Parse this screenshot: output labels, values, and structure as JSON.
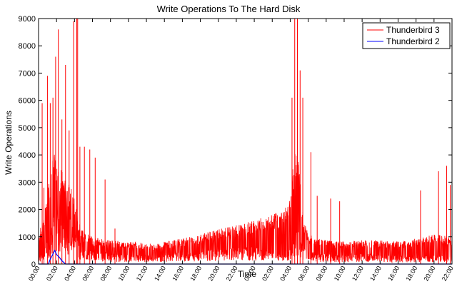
{
  "chart_data": {
    "type": "line",
    "title": "Write Operations To The Hard Disk",
    "xlabel": "Time",
    "ylabel": "Write Operations",
    "ylim": [
      0,
      9000
    ],
    "yticks": [
      0,
      1000,
      2000,
      3000,
      4000,
      5000,
      6000,
      7000,
      8000,
      9000
    ],
    "xlim_hours": [
      0,
      46
    ],
    "xtick_labels": [
      "00:00",
      "02:00",
      "04:00",
      "06:00",
      "08:00",
      "10:00",
      "12:00",
      "14:00",
      "16:00",
      "18:00",
      "20:00",
      "22:00",
      "00:00",
      "02:00",
      "04:00",
      "06:00",
      "08:00",
      "10:00",
      "12:00",
      "14:00",
      "16:00",
      "18:00",
      "20:00",
      "22:00"
    ],
    "grid": false,
    "legend_position": "top-right",
    "series": [
      {
        "name": "Thunderbird 3",
        "color": "#ff0000",
        "envelope": {
          "hours": [
            0.0,
            0.3,
            0.7,
            1.0,
            1.5,
            2.0,
            2.5,
            3.0,
            3.5,
            4.0,
            4.4,
            5.0,
            6.0,
            7.0,
            8.0,
            10.0,
            12.0,
            13.0,
            14.0,
            16.0,
            18.0,
            20.0,
            22.0,
            24.0,
            25.0,
            26.0,
            27.0,
            28.0,
            28.3,
            28.6,
            28.9,
            29.2,
            29.5,
            30.0,
            31.0,
            32.0,
            34.0,
            36.0,
            38.0,
            40.0,
            42.0,
            43.0,
            44.0,
            45.0,
            46.0
          ],
          "low": [
            200,
            500,
            700,
            900,
            1500,
            2200,
            2000,
            1800,
            1700,
            1500,
            900,
            600,
            500,
            450,
            400,
            350,
            350,
            300,
            400,
            450,
            500,
            550,
            600,
            650,
            600,
            500,
            400,
            550,
            900,
            1500,
            1200,
            900,
            700,
            500,
            400,
            350,
            350,
            400,
            350,
            300,
            300,
            300,
            350,
            300,
            300
          ],
          "high": [
            1000,
            1300,
            1800,
            2500,
            3500,
            3800,
            3200,
            2800,
            2600,
            2400,
            1500,
            1100,
            900,
            850,
            800,
            750,
            700,
            650,
            750,
            850,
            1000,
            1150,
            1300,
            1450,
            1550,
            1650,
            1750,
            2300,
            3400,
            4100,
            3600,
            2600,
            1500,
            1000,
            850,
            800,
            750,
            800,
            800,
            750,
            850,
            900,
            1000,
            950,
            900
          ]
        },
        "spikes": [
          {
            "hour": 0.4,
            "value": 5900
          },
          {
            "hour": 0.6,
            "value": 2800
          },
          {
            "hour": 1.0,
            "value": 6900
          },
          {
            "hour": 1.3,
            "value": 5900
          },
          {
            "hour": 1.6,
            "value": 6100
          },
          {
            "hour": 1.9,
            "value": 7600
          },
          {
            "hour": 2.2,
            "value": 8600
          },
          {
            "hour": 2.6,
            "value": 5300
          },
          {
            "hour": 3.0,
            "value": 7300
          },
          {
            "hour": 3.4,
            "value": 4900
          },
          {
            "hour": 3.9,
            "value": 8900
          },
          {
            "hour": 4.25,
            "value": 9000
          },
          {
            "hour": 4.35,
            "value": 9000
          },
          {
            "hour": 4.6,
            "value": 4300
          },
          {
            "hour": 5.1,
            "value": 4300
          },
          {
            "hour": 5.7,
            "value": 4200
          },
          {
            "hour": 6.3,
            "value": 3900
          },
          {
            "hour": 7.4,
            "value": 3100
          },
          {
            "hour": 8.5,
            "value": 1300
          },
          {
            "hour": 28.2,
            "value": 6100
          },
          {
            "hour": 28.5,
            "value": 9000
          },
          {
            "hour": 28.8,
            "value": 9000
          },
          {
            "hour": 29.1,
            "value": 7100
          },
          {
            "hour": 29.4,
            "value": 6100
          },
          {
            "hour": 30.3,
            "value": 4100
          },
          {
            "hour": 31.0,
            "value": 2500
          },
          {
            "hour": 32.5,
            "value": 2400
          },
          {
            "hour": 33.5,
            "value": 2300
          },
          {
            "hour": 42.5,
            "value": 2700
          },
          {
            "hour": 44.5,
            "value": 3400
          },
          {
            "hour": 45.4,
            "value": 3600
          },
          {
            "hour": 45.8,
            "value": 2900
          }
        ]
      },
      {
        "name": "Thunderbird 2",
        "color": "#0000ff",
        "points": [
          {
            "hour": 0.0,
            "value": 0
          },
          {
            "hour": 1.1,
            "value": 0
          },
          {
            "hour": 1.3,
            "value": 180
          },
          {
            "hour": 1.5,
            "value": 300
          },
          {
            "hour": 1.8,
            "value": 500
          },
          {
            "hour": 2.0,
            "value": 350
          },
          {
            "hour": 2.3,
            "value": 250
          },
          {
            "hour": 2.6,
            "value": 120
          },
          {
            "hour": 3.0,
            "value": 0
          },
          {
            "hour": 46.0,
            "value": 0
          }
        ]
      }
    ]
  }
}
